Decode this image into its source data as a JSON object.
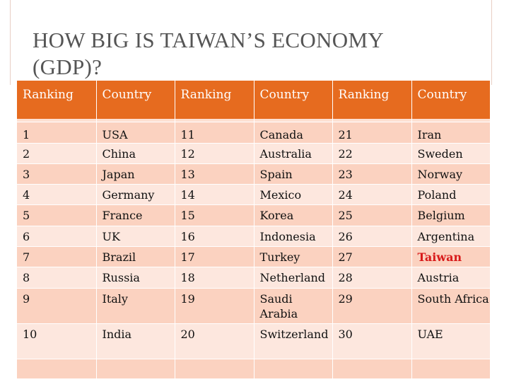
{
  "slide": {
    "title_line1": "HOW BIG IS TAIWAN’S ECONOMY",
    "title_line2": "(GDP)?"
  },
  "table": {
    "headers": [
      "Ranking",
      "Country",
      "Ranking",
      "Country",
      "Ranking",
      "Country"
    ],
    "rows": [
      [
        "1",
        "USA",
        "11",
        "Canada",
        "21",
        "Iran"
      ],
      [
        "2",
        "China",
        "12",
        "Australia",
        "22",
        "Sweden"
      ],
      [
        "3",
        "Japan",
        "13",
        "Spain",
        "23",
        "Norway"
      ],
      [
        "4",
        "Germany",
        "14",
        "Mexico",
        "24",
        "Poland"
      ],
      [
        "5",
        "France",
        "15",
        "Korea",
        "25",
        "Belgium"
      ],
      [
        "6",
        "UK",
        "16",
        "Indonesia",
        "26",
        "Argentina"
      ],
      [
        "7",
        "Brazil",
        "17",
        "Turkey",
        "27",
        "Taiwan"
      ],
      [
        "8",
        "Russia",
        "18",
        "Netherland",
        "28",
        "Austria"
      ],
      [
        "9",
        "Italy",
        "19",
        "Saudi Arabia",
        "29",
        "South Africa"
      ],
      [
        "10",
        "India",
        "20",
        "Switzerland",
        "30",
        "UAE"
      ],
      [
        "",
        "",
        "",
        "",
        "",
        ""
      ]
    ],
    "highlight_country": "Taiwan",
    "highlight_color": "#d81a1a",
    "header_color": "#e66b1f",
    "row_color_odd": "#fbd2c0",
    "row_color_even": "#fde7de"
  }
}
